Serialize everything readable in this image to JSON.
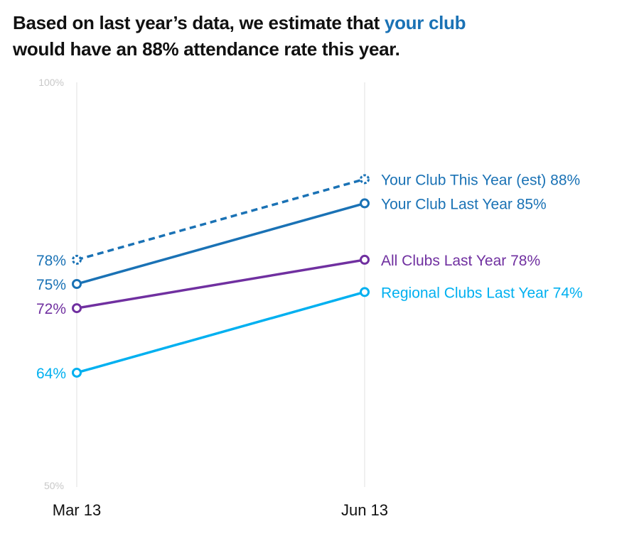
{
  "title": {
    "line1_pre": "Based on last year’s data, we estimate that ",
    "line1_highlight": "your club",
    "line2": "would have an 88% attendance rate this year."
  },
  "chart_data": {
    "type": "line",
    "categories": [
      "Mar 13",
      "Jun 13"
    ],
    "ylim": [
      50,
      100
    ],
    "y_tick_labels": [
      "100%",
      "50%"
    ],
    "grid": "vertical",
    "series": [
      {
        "name": "Your Club This Year (est)",
        "values": [
          78,
          88
        ],
        "color": "#1a72b5",
        "dashed": true,
        "left_label": "78%",
        "right_label": "Your Club This Year (est) 88%"
      },
      {
        "name": "Your Club Last Year",
        "values": [
          75,
          85
        ],
        "color": "#1a72b5",
        "dashed": false,
        "left_label": "75%",
        "right_label": "Your Club Last Year 85%"
      },
      {
        "name": "All Clubs Last Year",
        "values": [
          72,
          78
        ],
        "color": "#7030a0",
        "dashed": false,
        "left_label": "72%",
        "right_label": "All Clubs Last Year 78%"
      },
      {
        "name": "Regional Clubs Last Year",
        "values": [
          64,
          74
        ],
        "color": "#00b0f0",
        "dashed": false,
        "left_label": "64%",
        "right_label": "Regional Clubs Last Year 74%"
      }
    ]
  }
}
